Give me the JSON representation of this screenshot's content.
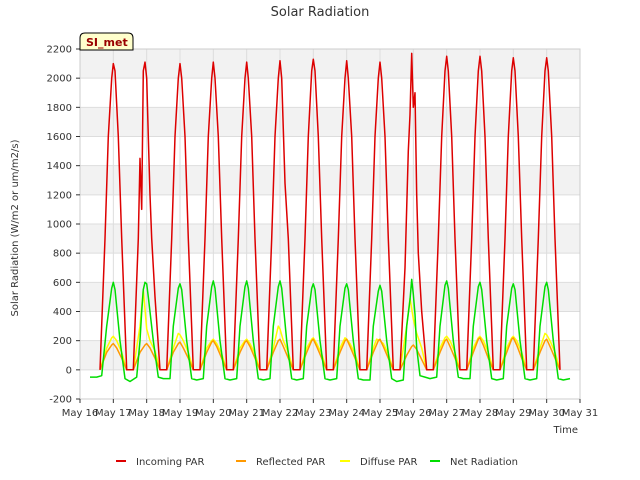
{
  "chart_data": {
    "type": "line",
    "title": "Solar Radiation",
    "xlabel": "Time",
    "ylabel": "Solar Radiation (W/m2 or um/m2/s)",
    "ylim": [
      -200,
      2200
    ],
    "xlim": [
      16,
      31
    ],
    "y_ticks": [
      -200,
      0,
      200,
      400,
      600,
      800,
      1000,
      1200,
      1400,
      1600,
      1800,
      2000,
      2200
    ],
    "x_ticks": [
      {
        "value": 16,
        "label": "May 16"
      },
      {
        "value": 17,
        "label": "May 17"
      },
      {
        "value": 18,
        "label": "May 18"
      },
      {
        "value": 19,
        "label": "May 19"
      },
      {
        "value": 20,
        "label": "May 20"
      },
      {
        "value": 21,
        "label": "May 21"
      },
      {
        "value": 22,
        "label": "May 22"
      },
      {
        "value": 23,
        "label": "May 23"
      },
      {
        "value": 24,
        "label": "May 24"
      },
      {
        "value": 25,
        "label": "May 25"
      },
      {
        "value": 26,
        "label": "May 26"
      },
      {
        "value": 27,
        "label": "May 27"
      },
      {
        "value": 28,
        "label": "May 28"
      },
      {
        "value": 29,
        "label": "May 29"
      },
      {
        "value": 30,
        "label": "May 30"
      },
      {
        "value": 31,
        "label": "May 31"
      }
    ],
    "grid": true,
    "legend_position": "bottom",
    "site_label": "SI_met",
    "series": [
      {
        "name": "Incoming PAR",
        "color": "#dd0000",
        "x": [
          16.6,
          16.75,
          16.85,
          16.95,
          17.0,
          17.05,
          17.15,
          17.25,
          17.4,
          17.6,
          17.75,
          17.8,
          17.85,
          17.9,
          17.95,
          18.0,
          18.05,
          18.1,
          18.15,
          18.25,
          18.4,
          18.6,
          18.75,
          18.85,
          18.95,
          19.0,
          19.05,
          19.15,
          19.25,
          19.4,
          19.6,
          19.75,
          19.85,
          19.95,
          20.0,
          20.05,
          20.15,
          20.25,
          20.4,
          20.6,
          20.75,
          20.85,
          20.95,
          21.0,
          21.05,
          21.15,
          21.25,
          21.4,
          21.6,
          21.75,
          21.85,
          21.95,
          22.0,
          22.05,
          22.15,
          22.25,
          22.4,
          22.6,
          22.75,
          22.85,
          22.95,
          23.0,
          23.05,
          23.15,
          23.25,
          23.4,
          23.6,
          23.75,
          23.85,
          23.95,
          24.0,
          24.05,
          24.15,
          24.25,
          24.4,
          24.6,
          24.75,
          24.85,
          24.95,
          25.0,
          25.05,
          25.15,
          25.25,
          25.4,
          25.6,
          25.75,
          25.85,
          25.9,
          25.95,
          26.0,
          26.05,
          26.1,
          26.15,
          26.25,
          26.4,
          26.6,
          26.75,
          26.85,
          26.95,
          27.0,
          27.05,
          27.15,
          27.25,
          27.4,
          27.6,
          27.75,
          27.85,
          27.95,
          28.0,
          28.05,
          28.15,
          28.25,
          28.4,
          28.6,
          28.75,
          28.85,
          28.95,
          29.0,
          29.05,
          29.15,
          29.25,
          29.4,
          29.6,
          29.75,
          29.85,
          29.95,
          30.0,
          30.05,
          30.15,
          30.25,
          30.4
        ],
        "y": [
          0,
          900,
          1600,
          2000,
          2100,
          2050,
          1600,
          900,
          0,
          0,
          900,
          1450,
          1100,
          2050,
          2110,
          2000,
          1600,
          1200,
          900,
          500,
          0,
          0,
          900,
          1600,
          2000,
          2100,
          2000,
          1600,
          900,
          0,
          0,
          900,
          1600,
          2000,
          2110,
          2000,
          1600,
          900,
          0,
          0,
          900,
          1600,
          2000,
          2110,
          2000,
          1600,
          900,
          0,
          0,
          900,
          1600,
          2000,
          2120,
          2000,
          1280,
          900,
          0,
          0,
          900,
          1600,
          2050,
          2130,
          2050,
          1600,
          900,
          0,
          0,
          900,
          1600,
          2000,
          2120,
          2000,
          1600,
          900,
          0,
          0,
          900,
          1600,
          2000,
          2110,
          2000,
          1600,
          900,
          0,
          0,
          700,
          1500,
          1750,
          2170,
          1800,
          1900,
          1200,
          800,
          400,
          0,
          0,
          900,
          1600,
          2050,
          2150,
          2050,
          1600,
          900,
          0,
          0,
          900,
          1600,
          2050,
          2150,
          2050,
          1600,
          900,
          0,
          0,
          900,
          1600,
          2050,
          2140,
          2050,
          1600,
          900,
          0,
          0,
          900,
          1600,
          2050,
          2140,
          2050,
          1600,
          900,
          0
        ]
      },
      {
        "name": "Reflected PAR",
        "color": "#ff9900",
        "x": [
          16.6,
          16.8,
          16.95,
          17.0,
          17.1,
          17.25,
          17.4,
          17.6,
          17.8,
          17.95,
          18.0,
          18.1,
          18.25,
          18.4,
          18.6,
          18.8,
          18.95,
          19.0,
          19.1,
          19.25,
          19.4,
          19.6,
          19.8,
          19.95,
          20.0,
          20.1,
          20.25,
          20.4,
          20.6,
          20.8,
          20.95,
          21.0,
          21.1,
          21.25,
          21.4,
          21.6,
          21.8,
          21.95,
          22.0,
          22.1,
          22.25,
          22.4,
          22.6,
          22.8,
          22.95,
          23.0,
          23.1,
          23.25,
          23.4,
          23.6,
          23.8,
          23.95,
          24.0,
          24.1,
          24.25,
          24.4,
          24.6,
          24.8,
          24.95,
          25.0,
          25.1,
          25.25,
          25.4,
          25.6,
          25.8,
          25.95,
          26.0,
          26.1,
          26.25,
          26.4,
          26.6,
          26.8,
          26.95,
          27.0,
          27.1,
          27.25,
          27.4,
          27.6,
          27.8,
          27.95,
          28.0,
          28.1,
          28.25,
          28.4,
          28.6,
          28.8,
          28.95,
          29.0,
          29.1,
          29.25,
          29.4,
          29.6,
          29.8,
          29.95,
          30.0,
          30.1,
          30.25,
          30.4
        ],
        "y": [
          0,
          120,
          170,
          180,
          150,
          80,
          0,
          0,
          120,
          170,
          180,
          150,
          80,
          0,
          0,
          120,
          180,
          190,
          150,
          80,
          0,
          0,
          120,
          190,
          200,
          160,
          80,
          0,
          0,
          120,
          190,
          200,
          160,
          80,
          0,
          0,
          120,
          200,
          210,
          160,
          80,
          0,
          0,
          120,
          200,
          210,
          160,
          80,
          0,
          0,
          120,
          200,
          210,
          160,
          80,
          0,
          0,
          120,
          200,
          210,
          160,
          80,
          0,
          0,
          100,
          160,
          170,
          140,
          70,
          0,
          0,
          120,
          200,
          210,
          160,
          80,
          0,
          0,
          120,
          210,
          220,
          170,
          80,
          0,
          0,
          120,
          210,
          220,
          170,
          80,
          0,
          0,
          120,
          200,
          210,
          160,
          80,
          0
        ]
      },
      {
        "name": "Diffuse PAR",
        "color": "#ffff00",
        "x": [
          16.6,
          16.8,
          16.95,
          17.0,
          17.1,
          17.25,
          17.4,
          17.6,
          17.8,
          17.9,
          18.0,
          18.1,
          18.25,
          18.4,
          18.6,
          18.8,
          18.95,
          19.0,
          19.1,
          19.25,
          19.4,
          19.6,
          19.8,
          19.95,
          20.0,
          20.1,
          20.25,
          20.4,
          20.6,
          20.8,
          20.95,
          21.0,
          21.1,
          21.25,
          21.4,
          21.6,
          21.8,
          21.95,
          22.0,
          22.1,
          22.25,
          22.4,
          22.6,
          22.8,
          22.95,
          23.0,
          23.1,
          23.25,
          23.4,
          23.6,
          23.8,
          23.95,
          24.0,
          24.1,
          24.25,
          24.4,
          24.6,
          24.8,
          24.9,
          25.0,
          25.1,
          25.25,
          25.4,
          25.6,
          25.8,
          25.9,
          26.0,
          26.1,
          26.25,
          26.4,
          26.6,
          26.8,
          26.95,
          27.0,
          27.1,
          27.25,
          27.4,
          27.6,
          27.8,
          27.95,
          28.0,
          28.1,
          28.25,
          28.4,
          28.6,
          28.8,
          28.95,
          29.0,
          29.1,
          29.25,
          29.4,
          29.6,
          29.8,
          29.95,
          30.0,
          30.1,
          30.25,
          30.4
        ],
        "y": [
          0,
          150,
          220,
          230,
          200,
          120,
          0,
          0,
          300,
          550,
          280,
          200,
          130,
          0,
          0,
          150,
          250,
          240,
          200,
          120,
          0,
          0,
          150,
          200,
          210,
          180,
          110,
          0,
          0,
          150,
          200,
          210,
          180,
          110,
          0,
          0,
          150,
          300,
          280,
          200,
          120,
          0,
          0,
          150,
          210,
          220,
          180,
          110,
          0,
          0,
          150,
          220,
          210,
          180,
          110,
          0,
          0,
          150,
          210,
          200,
          180,
          110,
          0,
          0,
          300,
          490,
          350,
          250,
          150,
          0,
          0,
          150,
          220,
          230,
          200,
          120,
          0,
          0,
          150,
          220,
          230,
          200,
          120,
          0,
          0,
          150,
          220,
          230,
          200,
          120,
          0,
          0,
          150,
          250,
          240,
          200,
          120,
          0
        ]
      },
      {
        "name": "Net Radiation",
        "color": "#00dd00",
        "x": [
          16.3,
          16.5,
          16.65,
          16.8,
          16.95,
          17.0,
          17.05,
          17.2,
          17.35,
          17.5,
          17.7,
          17.8,
          17.85,
          17.9,
          17.95,
          18.0,
          18.05,
          18.2,
          18.35,
          18.5,
          18.7,
          18.8,
          18.95,
          19.0,
          19.05,
          19.2,
          19.35,
          19.5,
          19.7,
          19.8,
          19.95,
          20.0,
          20.05,
          20.2,
          20.35,
          20.5,
          20.7,
          20.8,
          20.95,
          21.0,
          21.05,
          21.2,
          21.35,
          21.5,
          21.7,
          21.8,
          21.95,
          22.0,
          22.05,
          22.2,
          22.35,
          22.5,
          22.7,
          22.8,
          22.95,
          23.0,
          23.05,
          23.2,
          23.35,
          23.5,
          23.7,
          23.8,
          23.95,
          24.0,
          24.05,
          24.2,
          24.35,
          24.5,
          24.7,
          24.8,
          24.95,
          25.0,
          25.05,
          25.2,
          25.35,
          25.5,
          25.7,
          25.8,
          25.9,
          25.95,
          26.0,
          26.05,
          26.1,
          26.2,
          26.35,
          26.5,
          26.7,
          26.8,
          26.95,
          27.0,
          27.05,
          27.2,
          27.35,
          27.5,
          27.7,
          27.8,
          27.95,
          28.0,
          28.05,
          28.2,
          28.35,
          28.5,
          28.7,
          28.8,
          28.95,
          29.0,
          29.05,
          29.2,
          29.35,
          29.5,
          29.7,
          29.8,
          29.95,
          30.0,
          30.05,
          30.2,
          30.35,
          30.5,
          30.7
        ],
        "y": [
          -50,
          -50,
          -40,
          300,
          560,
          600,
          550,
          200,
          -60,
          -80,
          -50,
          200,
          400,
          550,
          600,
          590,
          500,
          200,
          -50,
          -60,
          -60,
          300,
          560,
          590,
          550,
          200,
          -60,
          -70,
          -60,
          300,
          570,
          610,
          560,
          200,
          -60,
          -70,
          -60,
          300,
          570,
          610,
          560,
          200,
          -60,
          -70,
          -60,
          300,
          570,
          610,
          560,
          200,
          -60,
          -70,
          -60,
          300,
          560,
          590,
          550,
          200,
          -60,
          -70,
          -60,
          300,
          560,
          590,
          550,
          200,
          -60,
          -70,
          -70,
          300,
          540,
          580,
          540,
          200,
          -60,
          -80,
          -70,
          300,
          480,
          620,
          520,
          380,
          150,
          -40,
          -50,
          -60,
          -50,
          300,
          580,
          610,
          560,
          200,
          -50,
          -60,
          -60,
          300,
          570,
          600,
          550,
          200,
          -60,
          -70,
          -60,
          300,
          560,
          590,
          550,
          200,
          -60,
          -70,
          -60,
          300,
          570,
          600,
          550,
          200,
          -60,
          -70,
          -60
        ]
      }
    ]
  }
}
